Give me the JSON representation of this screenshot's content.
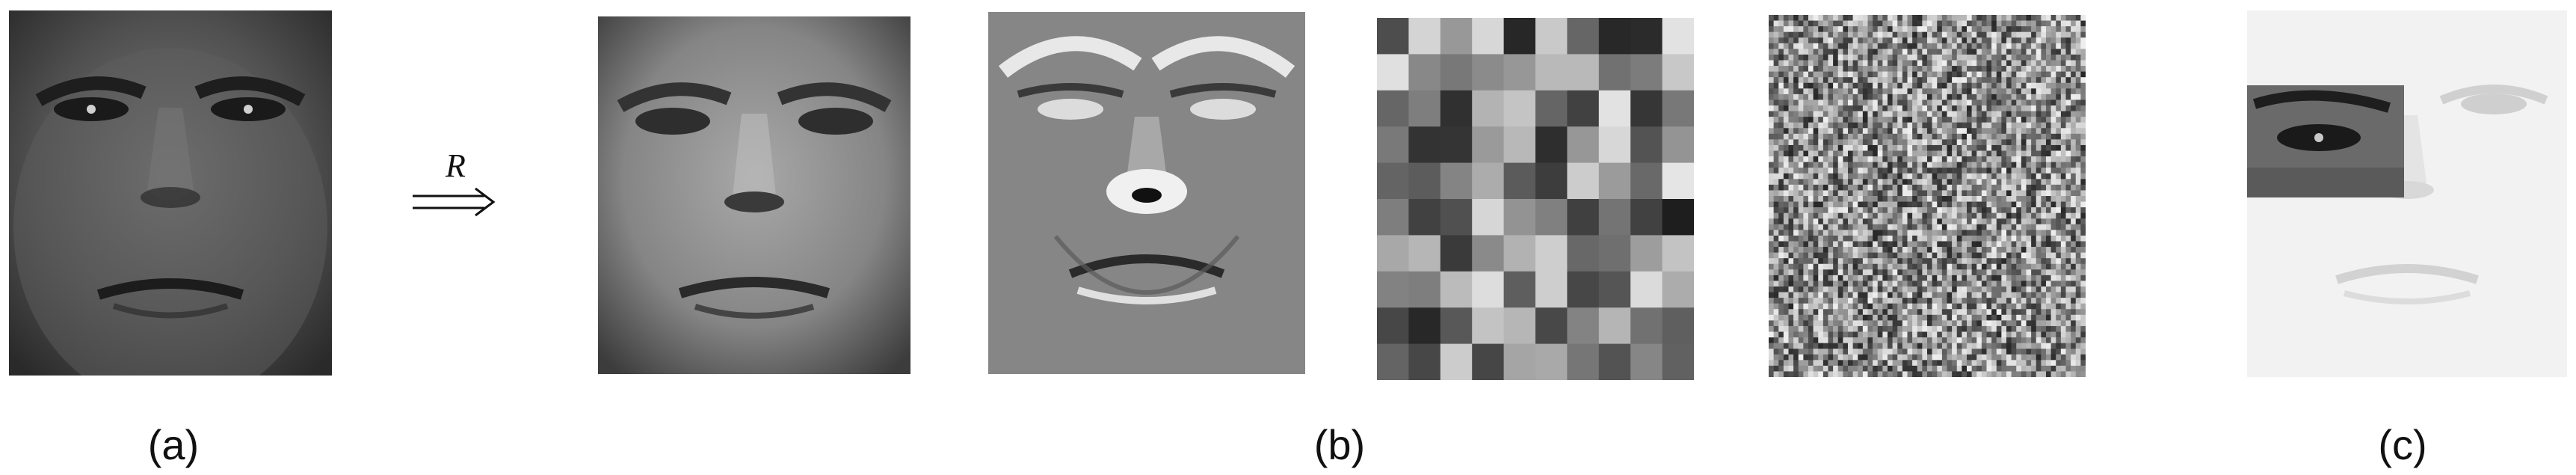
{
  "figure": {
    "transform_label": "R",
    "captions": {
      "a": "(a)",
      "b": "(b)",
      "c": "(c)"
    }
  },
  "colors": {
    "background": "#ffffff",
    "face_dark": "#3a3a3a",
    "face_mid": "#6b6b6b",
    "face_light": "#9a9a9a",
    "pale_face": "#f0f0f0"
  },
  "panels": [
    {
      "id": "original-face",
      "kind": "face"
    },
    {
      "id": "illumination-normalized-face",
      "kind": "face-bright"
    },
    {
      "id": "edge-enhanced-face",
      "kind": "face-relief"
    },
    {
      "id": "block-pixelated-face",
      "kind": "blocks",
      "grid": 10
    },
    {
      "id": "random-noise-image",
      "kind": "noise",
      "grid": 64
    },
    {
      "id": "occluded-face",
      "kind": "pale-with-eye-patch"
    }
  ]
}
